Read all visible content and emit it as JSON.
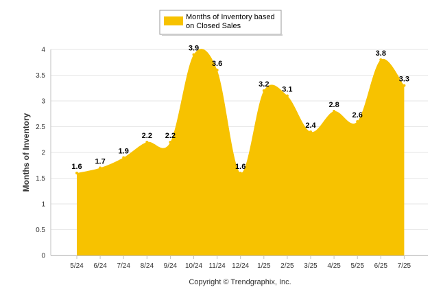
{
  "chart_data": {
    "type": "area",
    "categories": [
      "5/24",
      "6/24",
      "7/24",
      "8/24",
      "9/24",
      "10/24",
      "11/24",
      "12/24",
      "1/25",
      "2/25",
      "3/25",
      "4/25",
      "5/25",
      "6/25",
      "7/25"
    ],
    "series": [
      {
        "name": "Months of Inventory based on Closed Sales",
        "values": [
          1.6,
          1.7,
          1.9,
          2.2,
          2.2,
          3.9,
          3.6,
          1.6,
          3.2,
          3.1,
          2.4,
          2.8,
          2.6,
          3.8,
          3.3
        ]
      }
    ],
    "data_labels": [
      "1.6",
      "1.7",
      "1.9",
      "2.2",
      "2.2",
      "3.9",
      "3.6",
      "1.6",
      "3.2",
      "3.1",
      "2.4",
      "2.8",
      "2.6",
      "3.8",
      "3.3"
    ],
    "ylabel": "Months of Inventory",
    "ylim": [
      0,
      4
    ],
    "yticks": [
      "0",
      "0.5",
      "1",
      "1.5",
      "2",
      "2.5",
      "3",
      "3.5",
      "4"
    ],
    "legend_position": "top-center",
    "legend_lines": [
      "Months of Inventory based",
      "on Closed Sales"
    ],
    "grid": true,
    "credit": "Copyright © Trendgraphix, Inc.",
    "colors": {
      "fill": "#F7C200",
      "grid": "#E6E6E6",
      "axis": "#C0C0C0"
    }
  }
}
